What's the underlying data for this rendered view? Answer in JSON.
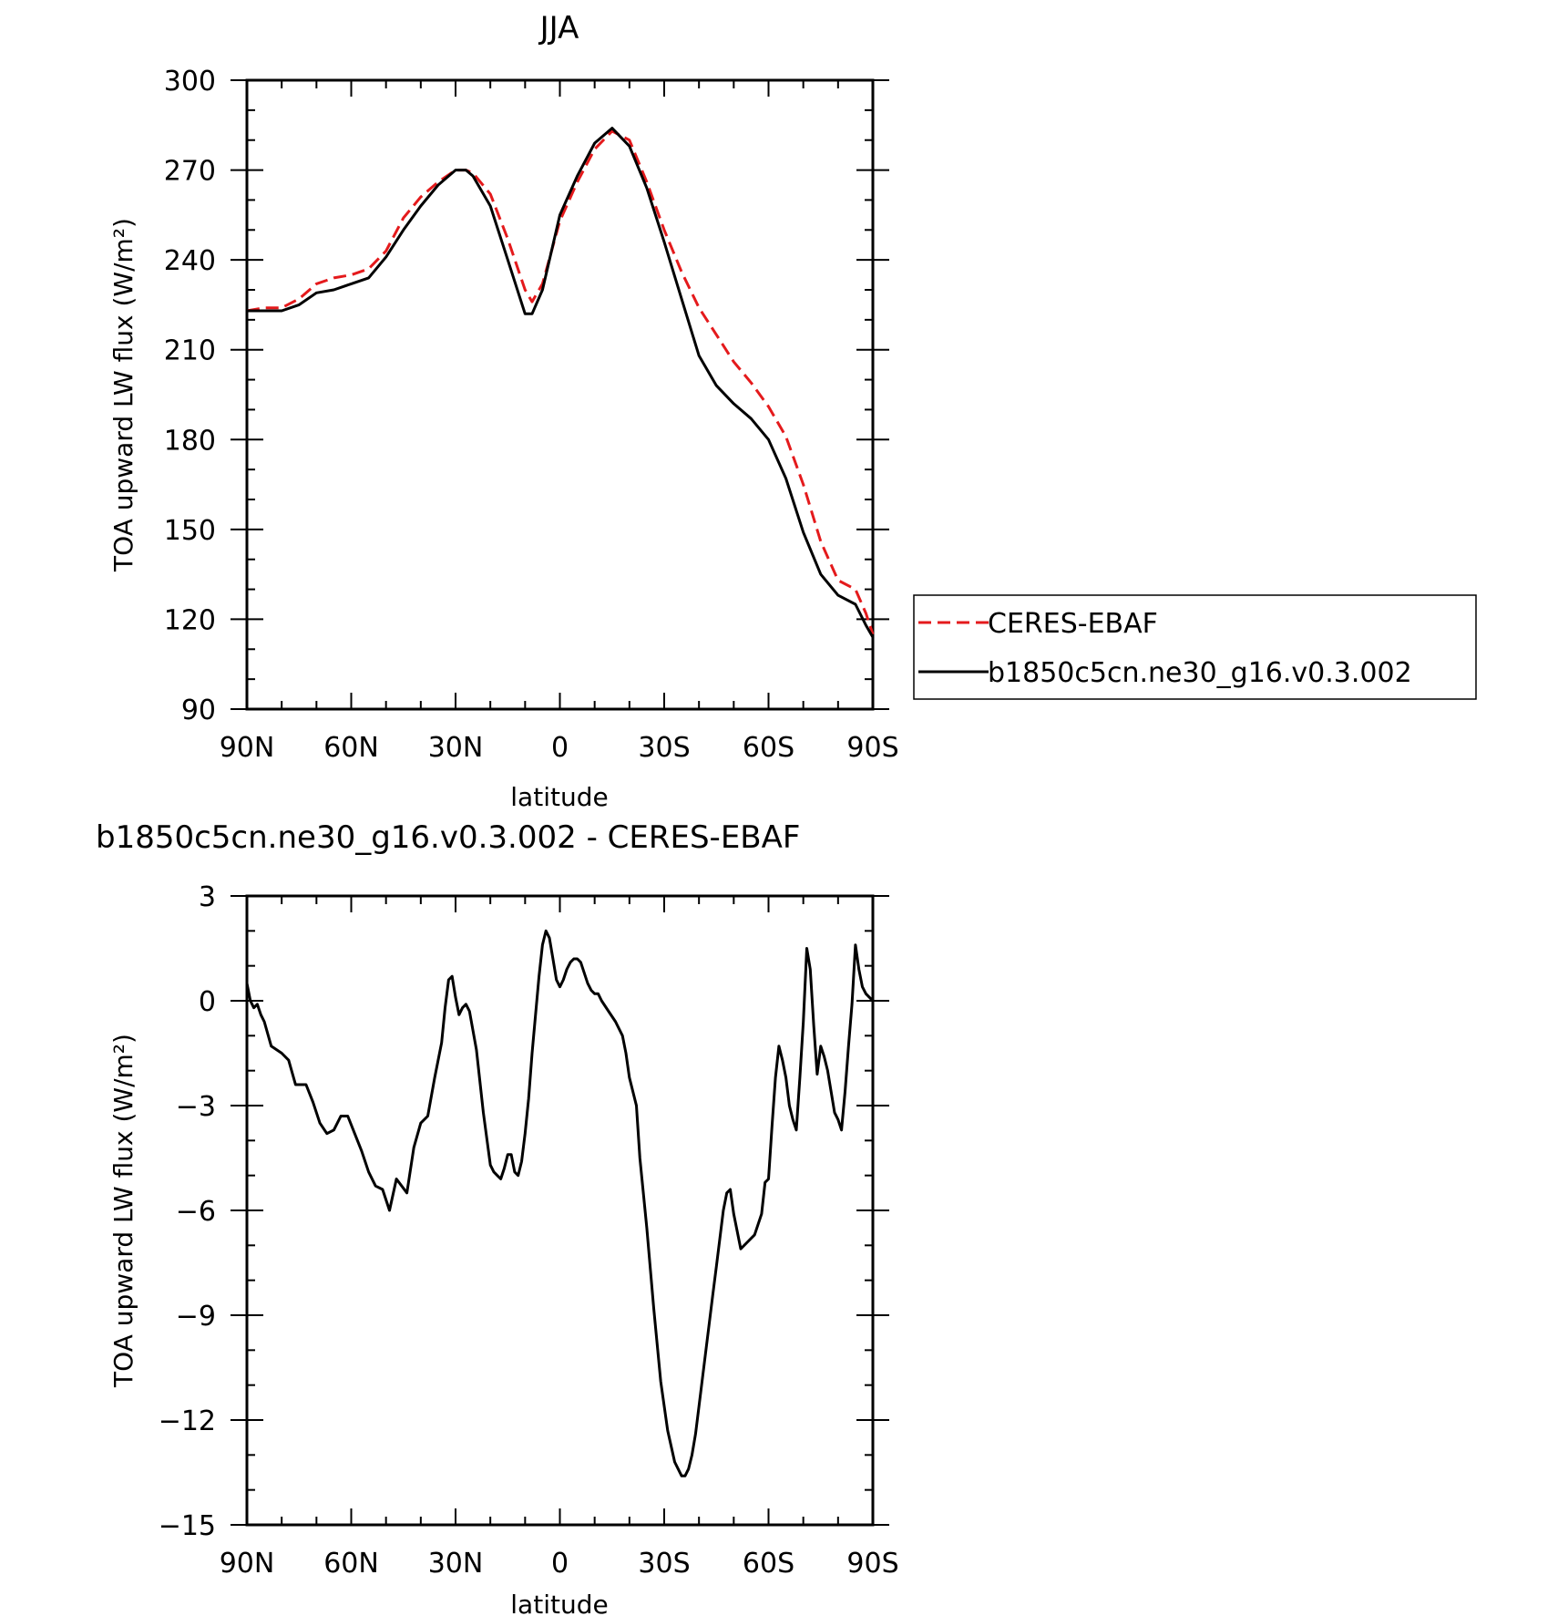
{
  "chart_data": [
    {
      "type": "line",
      "title": "JJA",
      "xlabel": "latitude",
      "ylabel": "TOA upward LW flux (W/m²)",
      "xlim": [
        -90,
        90
      ],
      "ylim": [
        90,
        300
      ],
      "x_ticks": [
        -90,
        -60,
        -30,
        0,
        30,
        60,
        90
      ],
      "x_tick_labels": [
        "90N",
        "60N",
        "30N",
        "0",
        "30S",
        "60S",
        "90S"
      ],
      "y_ticks": [
        90,
        120,
        150,
        180,
        210,
        240,
        270,
        300
      ],
      "y_tick_labels": [
        "90",
        "120",
        "150",
        "180",
        "210",
        "240",
        "270",
        "300"
      ],
      "legend_position": "right",
      "series": [
        {
          "name": "CERES-EBAF",
          "color": "#e41a1c",
          "dash": "dashed",
          "x": [
            -90,
            -85,
            -80,
            -75,
            -70,
            -65,
            -60,
            -55,
            -50,
            -45,
            -40,
            -35,
            -30,
            -27,
            -25,
            -20,
            -15,
            -10,
            -8,
            -5,
            0,
            5,
            10,
            15,
            20,
            25,
            30,
            35,
            40,
            45,
            50,
            55,
            60,
            65,
            70,
            75,
            80,
            85,
            88,
            90
          ],
          "y": [
            223,
            224,
            224,
            227,
            232,
            234,
            235,
            237,
            243,
            254,
            261,
            266,
            270,
            270,
            269,
            262,
            247,
            230,
            226,
            232,
            253,
            266,
            277,
            283,
            280,
            266,
            250,
            236,
            224,
            215,
            206,
            199,
            191,
            181,
            165,
            146,
            133,
            130,
            122,
            115
          ]
        },
        {
          "name": "b1850c5cn.ne30_g16.v0.3.002",
          "color": "#000000",
          "dash": "solid",
          "x": [
            -90,
            -85,
            -80,
            -75,
            -70,
            -65,
            -60,
            -55,
            -50,
            -45,
            -40,
            -35,
            -30,
            -27,
            -25,
            -20,
            -15,
            -10,
            -8,
            -5,
            0,
            5,
            10,
            15,
            20,
            25,
            30,
            35,
            40,
            45,
            50,
            55,
            60,
            65,
            70,
            75,
            80,
            85,
            88,
            90
          ],
          "y": [
            223,
            223,
            223,
            225,
            229,
            230,
            232,
            234,
            241,
            250,
            258,
            265,
            270,
            270,
            268,
            258,
            240,
            222,
            222,
            230,
            255,
            268,
            279,
            284,
            278,
            264,
            246,
            227,
            208,
            198,
            192,
            187,
            180,
            167,
            149,
            135,
            128,
            125,
            118,
            114
          ]
        }
      ]
    },
    {
      "type": "line",
      "title": "b1850c5cn.ne30_g16.v0.3.002 - CERES-EBAF",
      "xlabel": "latitude",
      "ylabel": "TOA upward LW flux (W/m²)",
      "xlim": [
        -90,
        90
      ],
      "ylim": [
        -15,
        3
      ],
      "x_ticks": [
        -90,
        -60,
        -30,
        0,
        30,
        60,
        90
      ],
      "x_tick_labels": [
        "90N",
        "60N",
        "30N",
        "0",
        "30S",
        "60S",
        "90S"
      ],
      "y_ticks": [
        -15,
        -12,
        -9,
        -6,
        -3,
        0,
        3
      ],
      "y_tick_labels": [
        "−15",
        "−12",
        "−9",
        "−6",
        "−3",
        "0",
        "3"
      ],
      "series": [
        {
          "name": "",
          "color": "#000000",
          "dash": "solid",
          "x": [
            -90,
            -89,
            -88,
            -87,
            -86,
            -85,
            -83,
            -80,
            -78,
            -76,
            -73,
            -71,
            -69,
            -67,
            -65,
            -63,
            -61,
            -59,
            -57,
            -55,
            -53,
            -51,
            -49,
            -47,
            -44,
            -42,
            -40,
            -38,
            -36,
            -34,
            -33,
            -32,
            -31,
            -30,
            -29,
            -28,
            -27,
            -26,
            -24,
            -22,
            -20,
            -19,
            -18,
            -17,
            -16,
            -15,
            -14,
            -13,
            -12,
            -11,
            -10,
            -9,
            -8,
            -7,
            -6,
            -5,
            -4,
            -3,
            -2,
            -1,
            0,
            1,
            2,
            3,
            4,
            5,
            6,
            7,
            8,
            9,
            10,
            11,
            12,
            14,
            16,
            18,
            19,
            20,
            22,
            23,
            25,
            27,
            29,
            31,
            33,
            35,
            36,
            37,
            38,
            39,
            40,
            41,
            42,
            43,
            44,
            45,
            46,
            47,
            48,
            49,
            50,
            52,
            54,
            56,
            58,
            59,
            60,
            61,
            62,
            63,
            64,
            65,
            66,
            67,
            68,
            69,
            70,
            71,
            72,
            73,
            74,
            75,
            76,
            77,
            78,
            79,
            80,
            81,
            82,
            83,
            84,
            85,
            86,
            87,
            88,
            89,
            90
          ],
          "y": [
            0.5,
            0.0,
            -0.2,
            -0.1,
            -0.4,
            -0.6,
            -1.3,
            -1.5,
            -1.7,
            -2.4,
            -2.4,
            -2.9,
            -3.5,
            -3.8,
            -3.7,
            -3.3,
            -3.3,
            -3.8,
            -4.3,
            -4.9,
            -5.3,
            -5.4,
            -6.0,
            -5.1,
            -5.5,
            -4.2,
            -3.5,
            -3.3,
            -2.2,
            -1.2,
            -0.2,
            0.6,
            0.7,
            0.1,
            -0.4,
            -0.2,
            -0.1,
            -0.3,
            -1.4,
            -3.2,
            -4.7,
            -4.9,
            -5.0,
            -5.1,
            -4.8,
            -4.4,
            -4.4,
            -4.9,
            -5.0,
            -4.6,
            -3.8,
            -2.8,
            -1.5,
            -0.4,
            0.7,
            1.6,
            2.0,
            1.8,
            1.2,
            0.6,
            0.4,
            0.6,
            0.9,
            1.1,
            1.2,
            1.2,
            1.1,
            0.8,
            0.5,
            0.3,
            0.2,
            0.2,
            0.0,
            -0.3,
            -0.6,
            -1.0,
            -1.5,
            -2.2,
            -3.0,
            -4.5,
            -6.5,
            -8.8,
            -10.9,
            -12.3,
            -13.2,
            -13.6,
            -13.6,
            -13.4,
            -13.0,
            -12.4,
            -11.6,
            -10.8,
            -10.0,
            -9.2,
            -8.4,
            -7.6,
            -6.8,
            -6.0,
            -5.5,
            -5.4,
            -6.1,
            -7.1,
            -6.9,
            -6.7,
            -6.1,
            -5.2,
            -5.1,
            -3.6,
            -2.2,
            -1.3,
            -1.7,
            -2.2,
            -3.0,
            -3.4,
            -3.7,
            -2.2,
            -0.6,
            1.5,
            0.9,
            -0.7,
            -2.1,
            -1.3,
            -1.6,
            -2.0,
            -2.6,
            -3.2,
            -3.4,
            -3.7,
            -2.6,
            -1.3,
            -0.1,
            1.6,
            0.9,
            0.4,
            0.2,
            0.1,
            0.0
          ]
        }
      ]
    }
  ]
}
